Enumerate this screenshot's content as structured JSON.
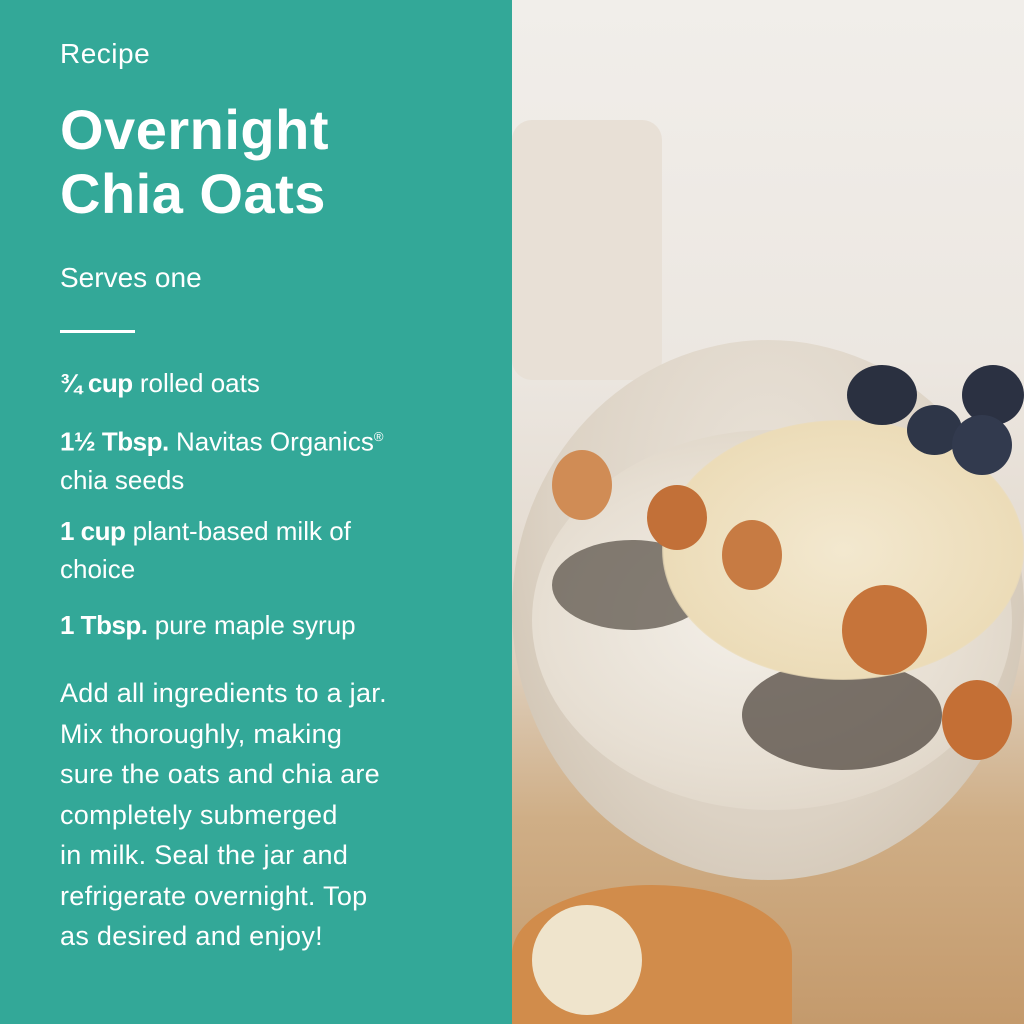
{
  "recipe": {
    "label": "Recipe",
    "title_lines": [
      "Overnight",
      "Chia Oats"
    ],
    "serves": "Serves one",
    "ingredients": [
      {
        "amount": "¾ cup",
        "item": "rolled oats"
      },
      {
        "amount": "1½ Tbsp.",
        "item": "Navitas Organics",
        "mark": "®",
        "item_cont": "chia seeds"
      },
      {
        "amount": "1 cup",
        "item": "plant-based milk of",
        "item_cont": "choice"
      },
      {
        "amount": "1 Tbsp.",
        "item": "pure maple syrup"
      }
    ],
    "instructions_lines": [
      "Add all ingredients to a jar.",
      "Mix thoroughly, making",
      "sure the oats and chia are",
      "completely submerged",
      "in milk. Seal the jar and",
      "refrigerate overnight. Top",
      "as desired and enjoy!"
    ]
  },
  "colors": {
    "panel": "#33a898",
    "text": "#ffffff"
  },
  "photo": {
    "subject": "bowl of overnight chia oats with banana, hazelnuts and blueberries"
  }
}
